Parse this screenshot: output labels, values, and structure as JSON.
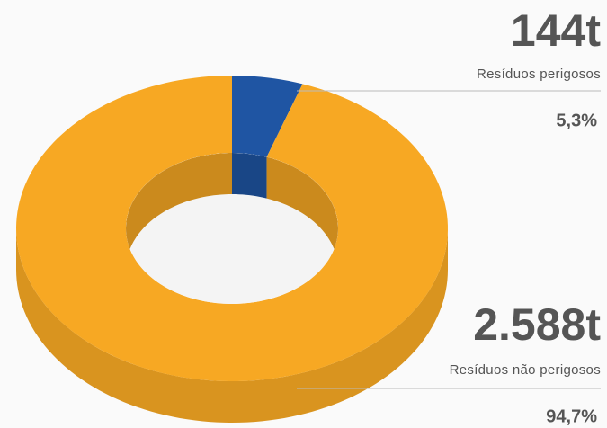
{
  "chart_data": {
    "type": "pie",
    "categories": [
      "Resíduos perigosos",
      "Resíduos não perigosos"
    ],
    "values": [
      5.3,
      94.7
    ],
    "value_labels": [
      "5,3%",
      "94,7%"
    ],
    "amounts": [
      144,
      2588
    ],
    "amount_labels": [
      "144t",
      "2.588t"
    ],
    "colors": [
      "#1f55a3",
      "#f7a823"
    ],
    "donut": true
  }
}
